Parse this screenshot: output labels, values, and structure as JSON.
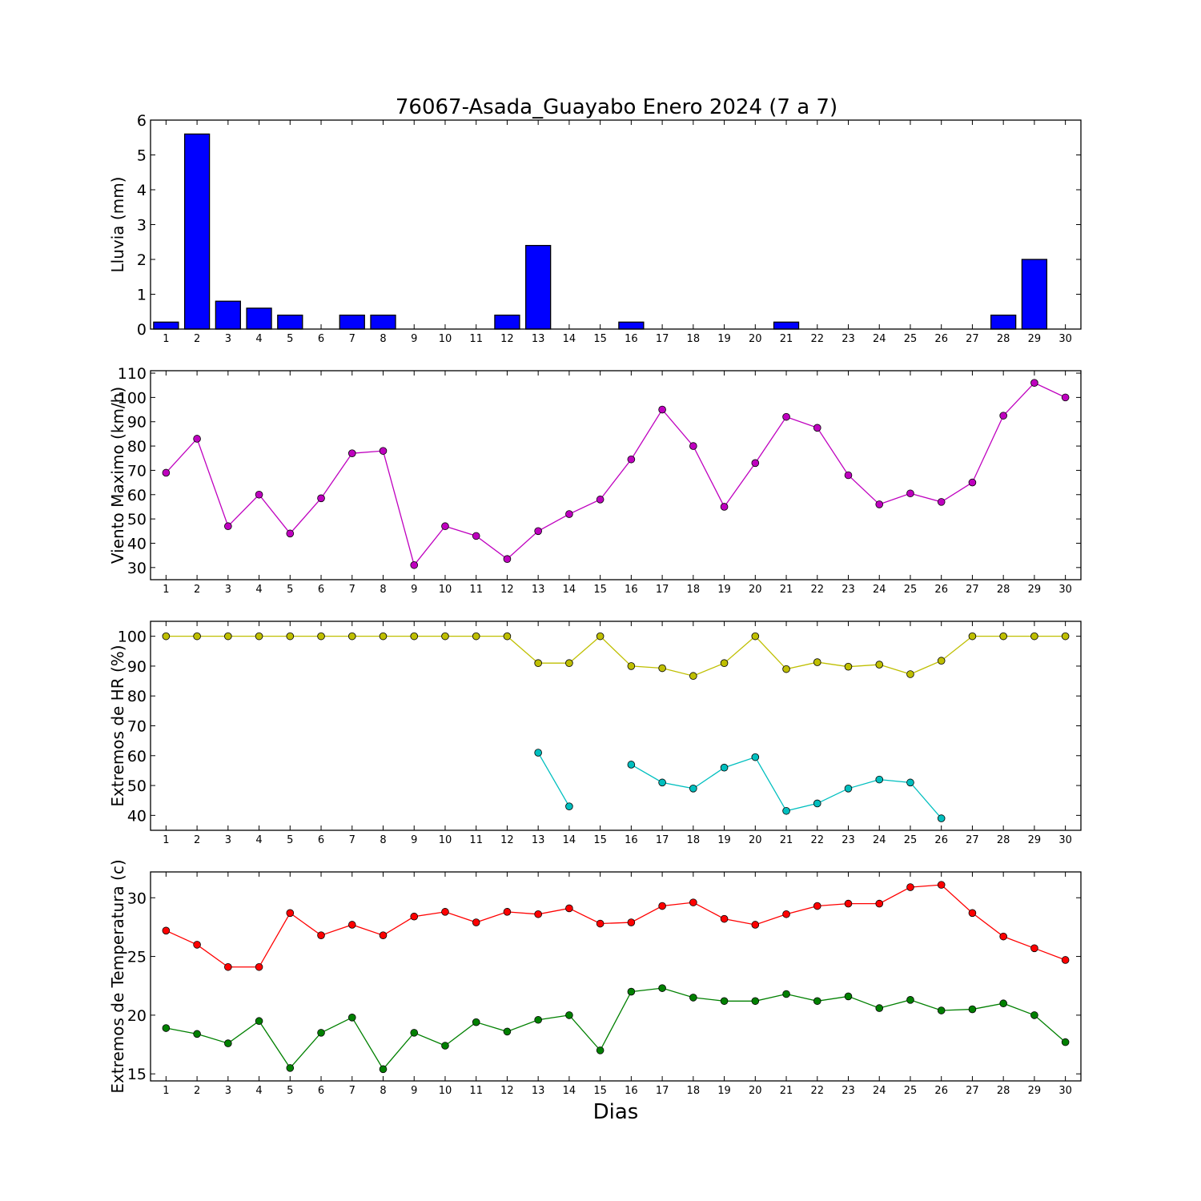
{
  "chart_data": {
    "title": "76067-Asada_Guayabo Enero 2024  (7 a 7)",
    "xlabel": "Dias",
    "days": [
      1,
      2,
      3,
      4,
      5,
      6,
      7,
      8,
      9,
      10,
      11,
      12,
      13,
      14,
      15,
      16,
      17,
      18,
      19,
      20,
      21,
      22,
      23,
      24,
      25,
      26,
      27,
      28,
      29,
      30
    ],
    "panels": [
      {
        "id": "lluvia",
        "type": "bar",
        "ylabel": "Lluvia (mm)",
        "ylim": [
          0,
          6
        ],
        "yticks": [
          0,
          1,
          2,
          3,
          4,
          5,
          6
        ],
        "series": [
          {
            "color": "#0000ff",
            "values": [
              0.2,
              5.6,
              0.8,
              0.6,
              0.4,
              0,
              0.4,
              0.4,
              0,
              0,
              0,
              0.4,
              2.4,
              0,
              0,
              0.2,
              0,
              0,
              0,
              0,
              0.2,
              0,
              0,
              0,
              0,
              0,
              0,
              0.4,
              2.0,
              0
            ]
          }
        ]
      },
      {
        "id": "viento",
        "type": "line",
        "ylabel": "Viento Maximo (km/h)",
        "ylim": [
          25,
          111
        ],
        "yticks": [
          30,
          40,
          50,
          60,
          70,
          80,
          90,
          100,
          110
        ],
        "series": [
          {
            "color": "#bf00bf",
            "values": [
              69,
              83,
              47,
              60,
              44,
              58.5,
              77,
              78,
              31,
              47,
              43,
              33.5,
              45,
              52,
              58,
              74.5,
              95,
              80,
              55,
              73,
              92,
              87.5,
              68,
              56,
              60.5,
              57,
              65,
              92.5,
              106,
              100
            ]
          }
        ]
      },
      {
        "id": "hr",
        "type": "line",
        "ylabel": "Extremos de HR (%)",
        "ylim": [
          35,
          105
        ],
        "yticks": [
          40,
          50,
          60,
          70,
          80,
          90,
          100
        ],
        "series": [
          {
            "color": "#bfbf00",
            "values": [
              100,
              100,
              100,
              100,
              100,
              100,
              100,
              100,
              100,
              100,
              100,
              100,
              91,
              91,
              100,
              90,
              89.3,
              86.7,
              91,
              100,
              89,
              91.3,
              89.8,
              90.5,
              87.3,
              91.8,
              100,
              100,
              100,
              100
            ]
          },
          {
            "color": "#00bfbf",
            "values": [
              null,
              null,
              null,
              null,
              null,
              null,
              null,
              null,
              null,
              null,
              null,
              null,
              61,
              43,
              null,
              57,
              51,
              49,
              56,
              59.5,
              41.5,
              44,
              49,
              52,
              51,
              39,
              null,
              null,
              null,
              null
            ]
          }
        ]
      },
      {
        "id": "temperatura",
        "type": "line",
        "ylabel": "Extremos de Temperatura (c)",
        "ylim": [
          14.4,
          32.2
        ],
        "yticks": [
          15,
          20,
          25,
          30
        ],
        "series": [
          {
            "color": "#ff0000",
            "values": [
              27.2,
              26,
              24.1,
              24.1,
              28.7,
              26.8,
              27.7,
              26.8,
              28.4,
              28.8,
              27.9,
              28.8,
              28.6,
              29.1,
              27.8,
              27.9,
              29.3,
              29.6,
              28.2,
              27.7,
              28.6,
              29.3,
              29.5,
              29.5,
              30.9,
              31.1,
              28.7,
              26.7,
              25.7,
              24.7
            ]
          },
          {
            "color": "#008000",
            "values": [
              18.9,
              18.4,
              17.6,
              19.5,
              15.5,
              18.5,
              19.8,
              15.4,
              18.5,
              17.4,
              19.4,
              18.6,
              19.6,
              20,
              17,
              22,
              22.3,
              21.5,
              21.2,
              21.2,
              21.8,
              21.2,
              21.6,
              20.6,
              21.3,
              20.4,
              20.5,
              21,
              20,
              17.7
            ]
          }
        ]
      }
    ]
  }
}
